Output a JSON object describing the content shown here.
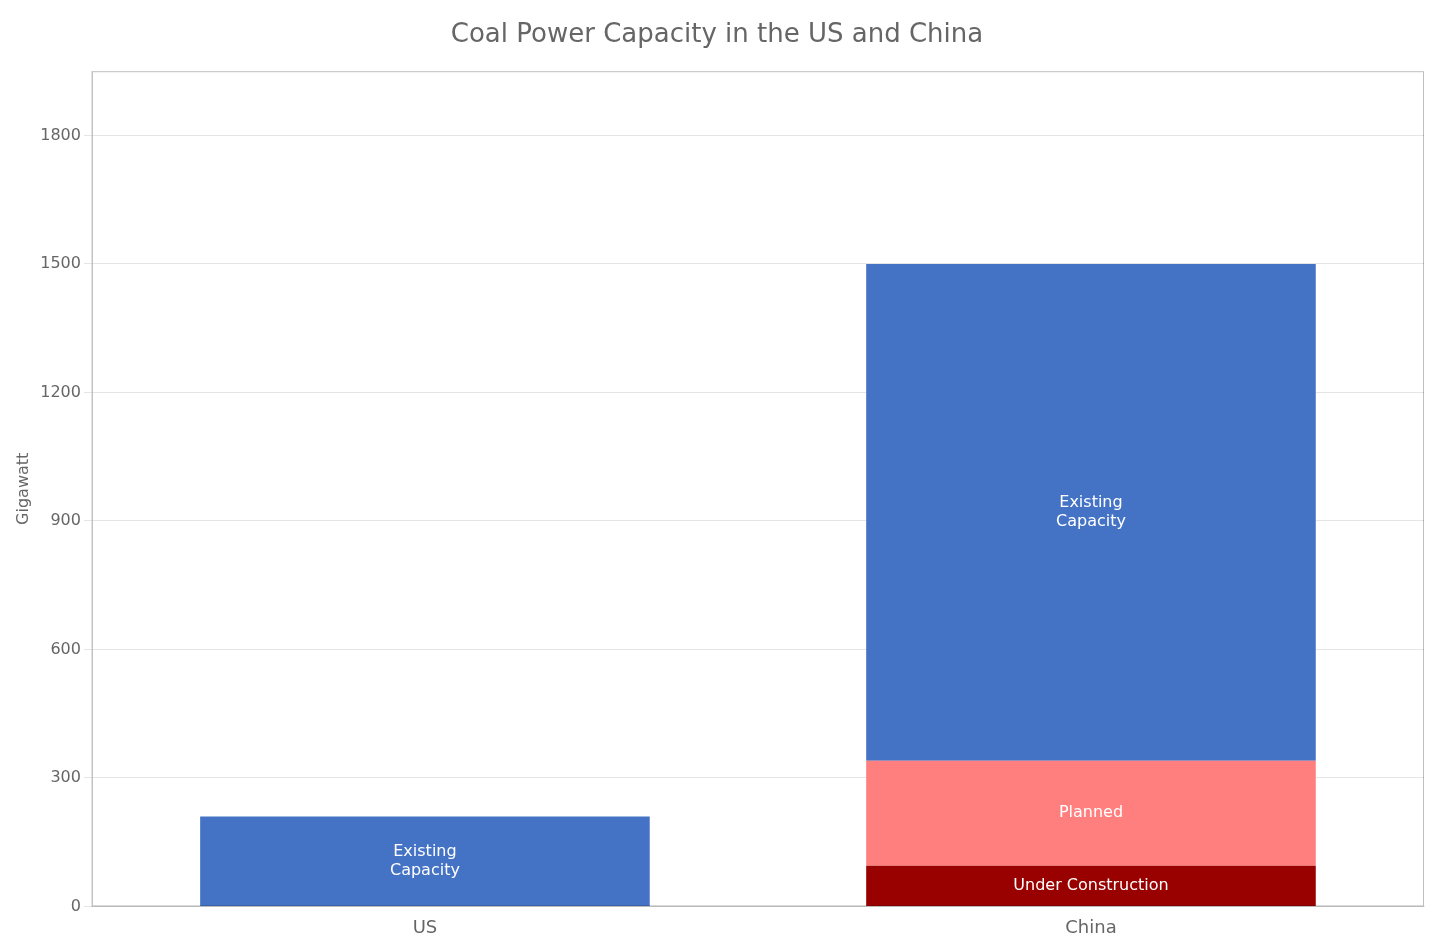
{
  "chart_data": {
    "type": "bar",
    "title": "Coal Power Capacity in the US and China",
    "ylabel": "Gigawatt",
    "categories": [
      "US",
      "China"
    ],
    "series": [
      {
        "name": "Under Construction",
        "color": "#990000",
        "values": [
          null,
          95
        ]
      },
      {
        "name": "Planned",
        "color": "#FF7F7F",
        "values": [
          null,
          245
        ]
      },
      {
        "name": "Existing\nCapacity",
        "color": "#4472C4",
        "values": [
          210,
          1160
        ]
      }
    ],
    "stacked": true,
    "ylim": [
      0,
      1950
    ],
    "yticks": [
      0,
      300,
      600,
      900,
      1200,
      1500,
      1800
    ],
    "grid": true
  }
}
